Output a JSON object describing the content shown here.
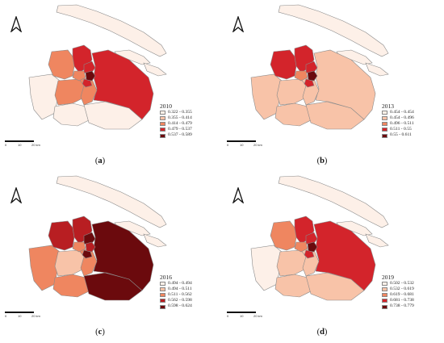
{
  "panels": [
    {
      "id": "a",
      "caption_letter": "a",
      "year": "2010",
      "legend": [
        {
          "label": "0.322 - 0.355",
          "color": "#fdf0e8"
        },
        {
          "label": "0.355 - 0.414",
          "color": "#f8c3a8"
        },
        {
          "label": "0.414 - 0.479",
          "color": "#ef8660"
        },
        {
          "label": "0.479 - 0.537",
          "color": "#d3242b"
        },
        {
          "label": "0.537 - 0.589",
          "color": "#6b0a0d"
        }
      ],
      "districts": {
        "chongming": "#fdf0e8",
        "changxing": "#fdf0e8",
        "hengsha": "#fdf0e8",
        "baoshan": "#d3242b",
        "jiading": "#ef8660",
        "qingpu": "#fdf0e8",
        "songjiang": "#ef8660",
        "jinshan": "#fdf0e8",
        "fengxian": "#fdf0e8",
        "pudong": "#d3242b",
        "minhang": "#ef8660",
        "urban_n": "#d3242b",
        "urban_w": "#ef8660",
        "urban_c": "#6b0a0d",
        "urban_s": "#d3242b"
      },
      "scale": {
        "ticks": [
          "0",
          "10",
          "20 km"
        ]
      }
    },
    {
      "id": "b",
      "caption_letter": "b",
      "year": "2013",
      "legend": [
        {
          "label": "0.454 - 0.454",
          "color": "#fdf0e8"
        },
        {
          "label": "0.454 - 0.496",
          "color": "#f8c3a8"
        },
        {
          "label": "0.496 - 0.511",
          "color": "#ef8660"
        },
        {
          "label": "0.511 - 0.55",
          "color": "#d3242b"
        },
        {
          "label": "0.55 - 0.611",
          "color": "#6b0a0d"
        }
      ],
      "districts": {
        "chongming": "#fdf0e8",
        "changxing": "#fdf0e8",
        "hengsha": "#fdf0e8",
        "baoshan": "#d3242b",
        "jiading": "#d3242b",
        "qingpu": "#f8c3a8",
        "songjiang": "#f8c3a8",
        "jinshan": "#f8c3a8",
        "fengxian": "#f8c3a8",
        "pudong": "#f8c3a8",
        "minhang": "#f8c3a8",
        "urban_n": "#d3242b",
        "urban_w": "#ef8660",
        "urban_c": "#6b0a0d",
        "urban_s": "#d3242b"
      },
      "scale": {
        "ticks": [
          "0",
          "10",
          "20 km"
        ]
      }
    },
    {
      "id": "c",
      "caption_letter": "c",
      "year": "2016",
      "legend": [
        {
          "label": "0.494 - 0.494",
          "color": "#fdf0e8"
        },
        {
          "label": "0.494 - 0.511",
          "color": "#f8c3a8"
        },
        {
          "label": "0.511 - 0.562",
          "color": "#ef8660"
        },
        {
          "label": "0.562 - 0.598",
          "color": "#b81e22"
        },
        {
          "label": "0.598 - 0.624",
          "color": "#6b0a0d"
        }
      ],
      "districts": {
        "chongming": "#fdf0e8",
        "changxing": "#fdf0e8",
        "hengsha": "#fdf0e8",
        "baoshan": "#b81e22",
        "jiading": "#b81e22",
        "qingpu": "#ef8660",
        "songjiang": "#f8c3a8",
        "jinshan": "#ef8660",
        "fengxian": "#6b0a0d",
        "pudong": "#6b0a0d",
        "minhang": "#ef8660",
        "urban_n": "#6b0a0d",
        "urban_w": "#ef8660",
        "urban_c": "#b81e22",
        "urban_s": "#6b0a0d"
      },
      "scale": {
        "ticks": [
          "0",
          "10",
          "20 km"
        ]
      }
    },
    {
      "id": "d",
      "caption_letter": "d",
      "year": "2019",
      "legend": [
        {
          "label": "0.502 - 0.532",
          "color": "#fdf0e8"
        },
        {
          "label": "0.532 - 0.619",
          "color": "#f8c3a8"
        },
        {
          "label": "0.619 - 0.681",
          "color": "#ef8660"
        },
        {
          "label": "0.681 - 0.738",
          "color": "#d3242b"
        },
        {
          "label": "0.738 - 0.779",
          "color": "#6b0a0d"
        }
      ],
      "districts": {
        "chongming": "#fdf0e8",
        "changxing": "#fdf0e8",
        "hengsha": "#fdf0e8",
        "baoshan": "#d3242b",
        "jiading": "#ef8660",
        "qingpu": "#fdf0e8",
        "songjiang": "#f8c3a8",
        "jinshan": "#f8c3a8",
        "fengxian": "#f8c3a8",
        "pudong": "#d3242b",
        "minhang": "#f8c3a8",
        "urban_n": "#d3242b",
        "urban_w": "#ef8660",
        "urban_c": "#6b0a0d",
        "urban_s": "#d3242b"
      },
      "scale": {
        "ticks": [
          "0",
          "10",
          "20 km"
        ]
      }
    }
  ]
}
